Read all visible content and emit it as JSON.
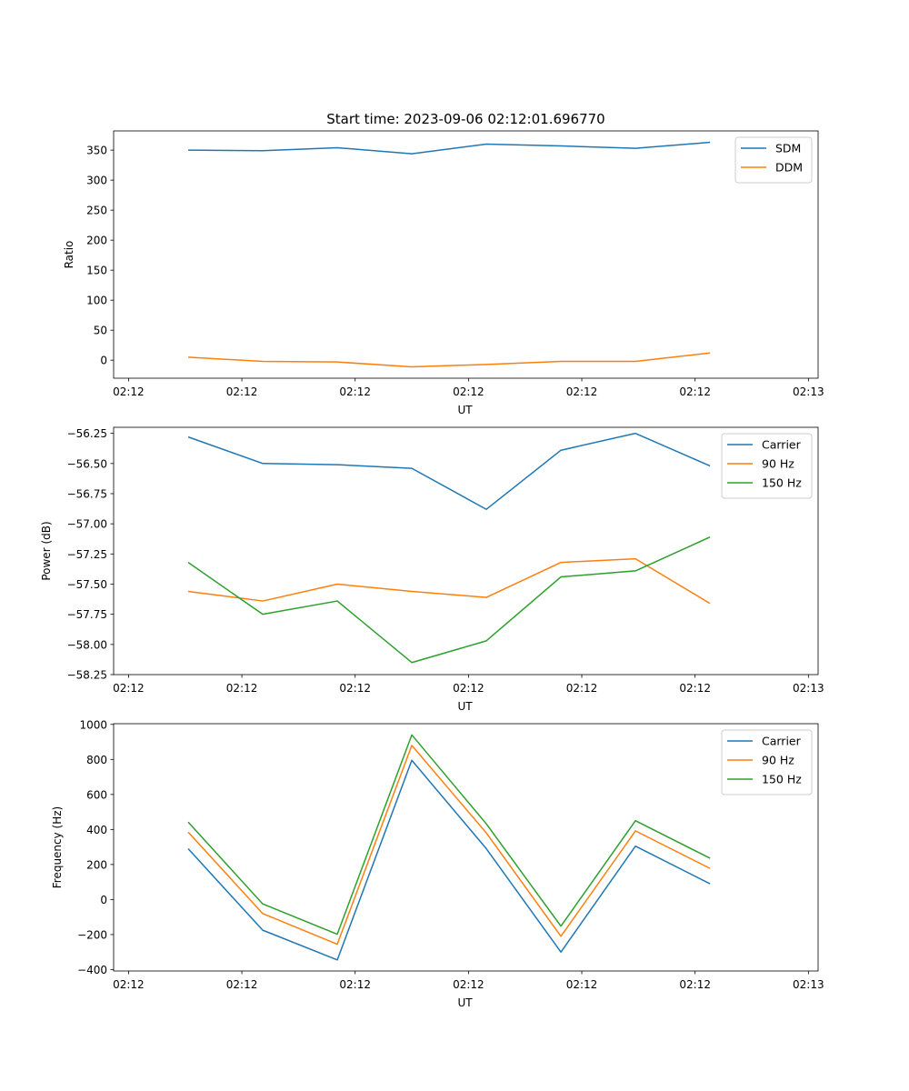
{
  "figure_title": "Start time: 2023-09-06 02:12:01.696770",
  "colors": {
    "blue": "#1f77b4",
    "orange": "#ff7f0e",
    "green": "#2ca02c",
    "axis": "#000000"
  },
  "chart_data": [
    {
      "type": "line",
      "title": "Start time: 2023-09-06 02:12:01.696770",
      "xlabel": "UT",
      "ylabel": "Ratio",
      "x": [
        1,
        2,
        3,
        4,
        5,
        6,
        7,
        8
      ],
      "x_ticks": [
        0.2,
        1.72,
        3.24,
        4.76,
        6.28,
        7.8,
        9.32
      ],
      "x_tick_labels": [
        "02:12",
        "02:12",
        "02:12",
        "02:12",
        "02:12",
        "02:12",
        "02:13"
      ],
      "xlim": [
        0.0,
        9.45
      ],
      "ylim": [
        -30,
        382
      ],
      "y_ticks": [
        0,
        50,
        100,
        150,
        200,
        250,
        300,
        350
      ],
      "y_tick_labels": [
        "0",
        "50",
        "100",
        "150",
        "200",
        "250",
        "300",
        "350"
      ],
      "legend_position": "top-right",
      "series": [
        {
          "name": "SDM",
          "color": "#1f77b4",
          "values": [
            350,
            349,
            354,
            344,
            360,
            357,
            353,
            363
          ]
        },
        {
          "name": "DDM",
          "color": "#ff7f0e",
          "values": [
            5,
            -2,
            -3,
            -11,
            -7,
            -2,
            -2,
            12
          ]
        }
      ]
    },
    {
      "type": "line",
      "title": "",
      "xlabel": "UT",
      "ylabel": "Power (dB)",
      "x": [
        1,
        2,
        3,
        4,
        5,
        6,
        7,
        8
      ],
      "x_ticks": [
        0.2,
        1.72,
        3.24,
        4.76,
        6.28,
        7.8,
        9.32
      ],
      "x_tick_labels": [
        "02:12",
        "02:12",
        "02:12",
        "02:12",
        "02:12",
        "02:12",
        "02:13"
      ],
      "xlim": [
        0.0,
        9.45
      ],
      "ylim": [
        -58.25,
        -56.2
      ],
      "y_ticks": [
        -58.25,
        -58.0,
        -57.75,
        -57.5,
        -57.25,
        -57.0,
        -56.75,
        -56.5,
        -56.25
      ],
      "y_tick_labels": [
        "−58.25",
        "−58.00",
        "−57.75",
        "−57.50",
        "−57.25",
        "−57.00",
        "−56.75",
        "−56.50",
        "−56.25"
      ],
      "legend_position": "top-right",
      "series": [
        {
          "name": "Carrier",
          "color": "#1f77b4",
          "values": [
            -56.28,
            -56.5,
            -56.51,
            -56.54,
            -56.88,
            -56.39,
            -56.25,
            -56.52
          ]
        },
        {
          "name": "90 Hz",
          "color": "#ff7f0e",
          "values": [
            -57.56,
            -57.64,
            -57.5,
            -57.56,
            -57.61,
            -57.32,
            -57.29,
            -57.66
          ]
        },
        {
          "name": "150 Hz",
          "color": "#2ca02c",
          "values": [
            -57.32,
            -57.75,
            -57.64,
            -58.15,
            -57.97,
            -57.44,
            -57.39,
            -57.11
          ]
        }
      ]
    },
    {
      "type": "line",
      "title": "",
      "xlabel": "UT",
      "ylabel": "Frequency (Hz)",
      "x": [
        1,
        2,
        3,
        4,
        5,
        6,
        7,
        8
      ],
      "x_ticks": [
        0.2,
        1.72,
        3.24,
        4.76,
        6.28,
        7.8,
        9.32
      ],
      "x_tick_labels": [
        "02:12",
        "02:12",
        "02:12",
        "02:12",
        "02:12",
        "02:12",
        "02:13"
      ],
      "xlim": [
        0.0,
        9.45
      ],
      "ylim": [
        -408,
        1004
      ],
      "y_ticks": [
        -400,
        -200,
        0,
        200,
        400,
        600,
        800,
        1000
      ],
      "y_tick_labels": [
        "−400",
        "−200",
        "0",
        "200",
        "400",
        "600",
        "800",
        "1000"
      ],
      "legend_position": "top-right",
      "series": [
        {
          "name": "Carrier",
          "color": "#1f77b4",
          "values": [
            290,
            -175,
            -345,
            795,
            290,
            -300,
            305,
            90
          ]
        },
        {
          "name": "90 Hz",
          "color": "#ff7f0e",
          "values": [
            385,
            -80,
            -255,
            880,
            380,
            -210,
            392,
            178
          ]
        },
        {
          "name": "150 Hz",
          "color": "#2ca02c",
          "values": [
            442,
            -25,
            -198,
            940,
            432,
            -152,
            450,
            236
          ]
        }
      ]
    }
  ]
}
